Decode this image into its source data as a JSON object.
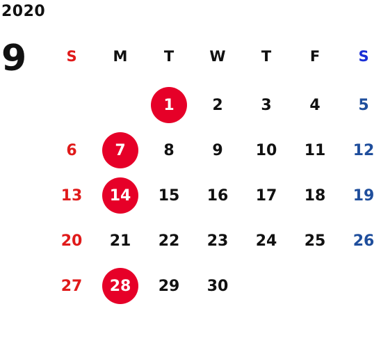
{
  "year": "2020",
  "month": "9",
  "weekdays": [
    "S",
    "M",
    "T",
    "W",
    "T",
    "F",
    "S"
  ],
  "weeks": [
    [
      "",
      "",
      "1",
      "2",
      "3",
      "4",
      "5"
    ],
    [
      "6",
      "7",
      "8",
      "9",
      "10",
      "11",
      "12"
    ],
    [
      "13",
      "14",
      "15",
      "16",
      "17",
      "18",
      "19"
    ],
    [
      "20",
      "21",
      "22",
      "23",
      "24",
      "25",
      "26"
    ],
    [
      "27",
      "28",
      "29",
      "30",
      "",
      "",
      ""
    ]
  ],
  "highlighted_days": [
    "1",
    "7",
    "14",
    "28"
  ],
  "colors": {
    "text": "#111111",
    "sunday": "#e01a1a",
    "saturday": "#1f4e9c",
    "saturday_header": "#1a2fd6",
    "highlight": "#e60028"
  }
}
